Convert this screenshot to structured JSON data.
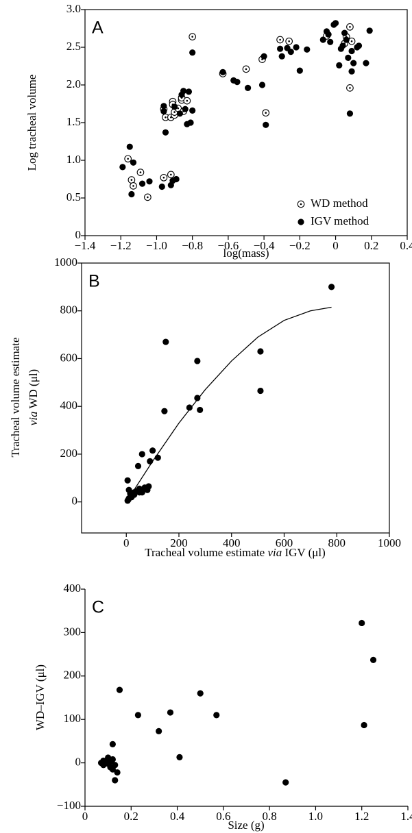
{
  "chart_data": [
    {
      "type": "scatter",
      "panel_label": "A",
      "xlabel": "log(mass)",
      "ylabel": "Log tracheal volume",
      "xlim": [
        -1.4,
        0.4
      ],
      "ylim": [
        0,
        3.0
      ],
      "xticks": [
        {
          "value": -1.4,
          "label": "−1.4"
        },
        {
          "value": -1.2,
          "label": "−1.2"
        },
        {
          "value": -1.0,
          "label": "−1.0"
        },
        {
          "value": -0.8,
          "label": "−0.8"
        },
        {
          "value": -0.6,
          "label": "−0.6"
        },
        {
          "value": -0.4,
          "label": "−0.4"
        },
        {
          "value": -0.2,
          "label": "−0.2"
        },
        0,
        0.2,
        0.4
      ],
      "yticks": [
        0,
        0.5,
        {
          "value": 1,
          "label": "1.0"
        },
        1.5,
        {
          "value": 2,
          "label": "2.0"
        },
        2.5,
        {
          "value": 3,
          "label": "3.0"
        }
      ],
      "legend": "lower right",
      "frame": true,
      "series": [
        {
          "name": "WD method",
          "marker": "open",
          "color": "#000000",
          "x": [
            -1.16,
            -1.14,
            -1.13,
            -1.09,
            -1.05,
            -0.96,
            -0.96,
            -0.95,
            -0.92,
            -0.91,
            -0.9,
            -0.91,
            -0.9,
            -0.88,
            -0.92,
            -0.86,
            -0.86,
            -0.85,
            -0.83,
            -0.8,
            -0.63,
            -0.5,
            -0.41,
            -0.39,
            -0.31,
            -0.26,
            -0.05,
            0.06,
            0.08,
            0.08,
            0.09,
            0.05
          ],
          "values": [
            1.02,
            0.74,
            0.66,
            0.84,
            0.51,
            0.77,
            1.68,
            1.57,
            1.57,
            1.78,
            1.6,
            1.74,
            1.64,
            1.69,
            0.81,
            1.8,
            1.83,
            1.65,
            1.79,
            2.64,
            2.15,
            2.21,
            2.34,
            1.63,
            2.6,
            2.58,
            2.65,
            2.64,
            2.77,
            1.96,
            2.58,
            2.55
          ]
        },
        {
          "name": "IGV method",
          "marker": "filled",
          "color": "#000000",
          "x": [
            -1.19,
            -1.15,
            -1.14,
            -1.13,
            -1.08,
            -1.04,
            -0.97,
            -0.96,
            -0.96,
            -0.95,
            -0.92,
            -0.91,
            -0.9,
            -0.89,
            -0.87,
            -0.86,
            -0.85,
            -0.84,
            -0.83,
            -0.82,
            -0.81,
            -0.8,
            -0.8,
            -0.63,
            -0.57,
            -0.55,
            -0.49,
            -0.41,
            -0.4,
            -0.39,
            -0.31,
            -0.3,
            -0.27,
            -0.25,
            -0.22,
            -0.2,
            -0.16,
            -0.07,
            -0.05,
            -0.03,
            0,
            -0.04,
            0.02,
            0.03,
            0.04,
            0.05,
            0.07,
            0.08,
            0.09,
            0.1,
            0.12,
            0.13,
            0.17,
            0.19,
            0.06,
            0.09,
            -0.01
          ],
          "values": [
            0.91,
            1.18,
            0.55,
            0.97,
            0.69,
            0.72,
            0.65,
            1.65,
            1.72,
            1.37,
            0.67,
            0.73,
            1.71,
            0.75,
            1.62,
            1.87,
            1.92,
            1.68,
            1.48,
            1.91,
            1.5,
            1.66,
            2.43,
            2.17,
            2.06,
            2.04,
            1.96,
            2.0,
            2.38,
            1.47,
            2.48,
            2.38,
            2.49,
            2.44,
            2.5,
            2.19,
            2.47,
            2.6,
            2.71,
            2.57,
            2.82,
            2.67,
            2.26,
            2.48,
            2.52,
            2.69,
            2.36,
            1.62,
            2.18,
            2.29,
            2.5,
            2.52,
            2.29,
            2.72,
            2.6,
            2.45,
            2.8
          ]
        }
      ]
    },
    {
      "type": "scatter",
      "panel_label": "B",
      "xlabel": [
        "Tracheal volume estimate ",
        "via",
        " IGV (μl)"
      ],
      "ylabel": [
        "Tracheal volume estimate",
        "via",
        " WD (μl)"
      ],
      "xlim": [
        -170,
        1000
      ],
      "ylim": [
        -130,
        1000
      ],
      "xticks": [
        0,
        200,
        400,
        600,
        800,
        1000
      ],
      "yticks": [
        0,
        200,
        400,
        600,
        800,
        1000
      ],
      "frame": true,
      "series": [
        {
          "marker": "filled",
          "color": "#000000",
          "x": [
            5,
            8,
            10,
            5,
            10,
            20,
            30,
            40,
            50,
            50,
            45,
            60,
            60,
            70,
            80,
            85,
            90,
            100,
            120,
            145,
            150,
            240,
            270,
            270,
            280,
            510,
            510,
            780,
            30,
            15
          ],
          "values": [
            5,
            10,
            15,
            90,
            50,
            20,
            30,
            45,
            40,
            55,
            150,
            200,
            40,
            60,
            50,
            65,
            170,
            215,
            185,
            380,
            670,
            395,
            590,
            435,
            385,
            630,
            465,
            900,
            40,
            35
          ]
        },
        {
          "type": "line",
          "color": "#000000",
          "x": [
            0,
            100,
            200,
            300,
            400,
            500,
            600,
            700,
            780
          ],
          "values": [
            0,
            170,
            330,
            470,
            590,
            690,
            760,
            800,
            815
          ]
        }
      ]
    },
    {
      "type": "scatter",
      "panel_label": "C",
      "xlabel": "Size (g)",
      "ylabel": "WD–IGV (μl)",
      "xlim": [
        0,
        1.4
      ],
      "ylim": [
        -100,
        400
      ],
      "xticks": [
        0,
        0.2,
        0.4,
        0.6,
        0.8,
        {
          "value": 1,
          "label": "1.0"
        },
        1.2,
        1.4
      ],
      "yticks": [
        {
          "value": -100,
          "label": "−100"
        },
        0,
        100,
        200,
        300,
        400
      ],
      "frame": false,
      "series": [
        {
          "marker": "filled",
          "color": "#000000",
          "x": [
            0.07,
            0.08,
            0.08,
            0.09,
            0.1,
            0.1,
            0.11,
            0.11,
            0.12,
            0.12,
            0.12,
            0.13,
            0.13,
            0.14,
            0.15,
            0.23,
            0.32,
            0.37,
            0.41,
            0.5,
            0.57,
            0.87,
            1.2,
            1.21,
            1.25
          ],
          "values": [
            0,
            -5,
            5,
            0,
            -2,
            12,
            3,
            -10,
            8,
            -15,
            43,
            -5,
            -40,
            -22,
            168,
            110,
            73,
            116,
            13,
            160,
            110,
            -45,
            322,
            87,
            237
          ]
        }
      ]
    }
  ]
}
